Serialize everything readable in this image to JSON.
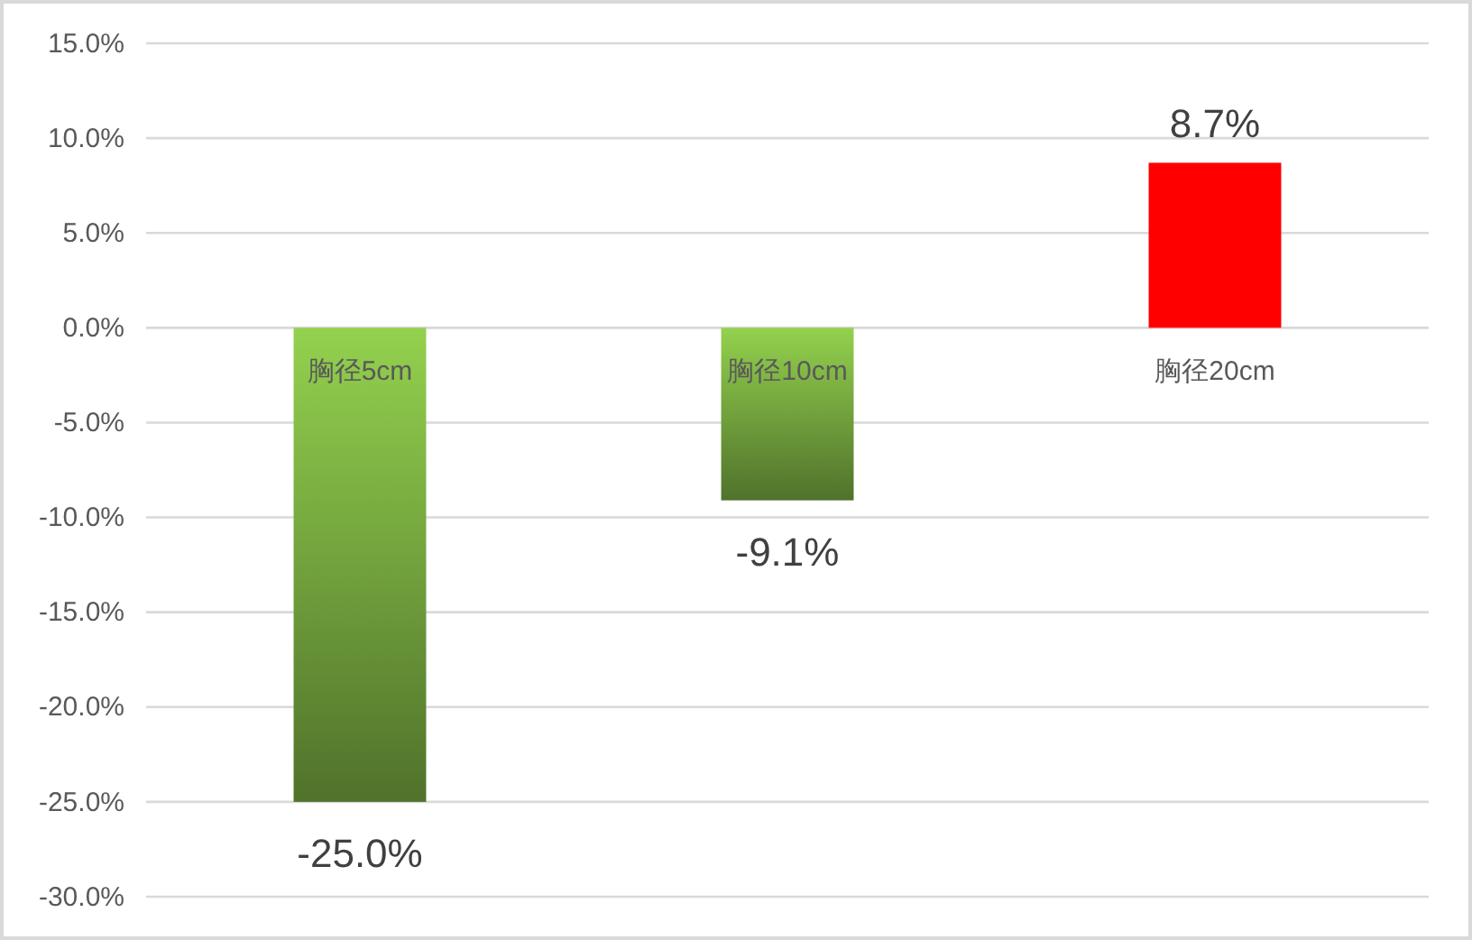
{
  "chart_data": {
    "type": "bar",
    "categories": [
      "胸径5cm",
      "胸径10cm",
      "胸径20cm"
    ],
    "values": [
      -25.0,
      -9.1,
      8.7
    ],
    "colors": [
      "#77a93f",
      "#77a93f",
      "#ff0000"
    ],
    "value_labels": [
      "-25.0%",
      "-9.1%",
      "8.7%"
    ],
    "ylim": [
      -30,
      15
    ],
    "yticks": [
      {
        "value": -30,
        "label": "-30.0%"
      },
      {
        "value": -25,
        "label": "-25.0%"
      },
      {
        "value": -20,
        "label": "-20.0%"
      },
      {
        "value": -15,
        "label": "-15.0%"
      },
      {
        "value": -10,
        "label": "-10.0%"
      },
      {
        "value": -5,
        "label": "-5.0%"
      },
      {
        "value": 0,
        "label": "0.0%"
      },
      {
        "value": 5,
        "label": "5.0%"
      },
      {
        "value": 10,
        "label": "10.0%"
      },
      {
        "value": 15,
        "label": "15.0%"
      }
    ],
    "grid": "y"
  }
}
